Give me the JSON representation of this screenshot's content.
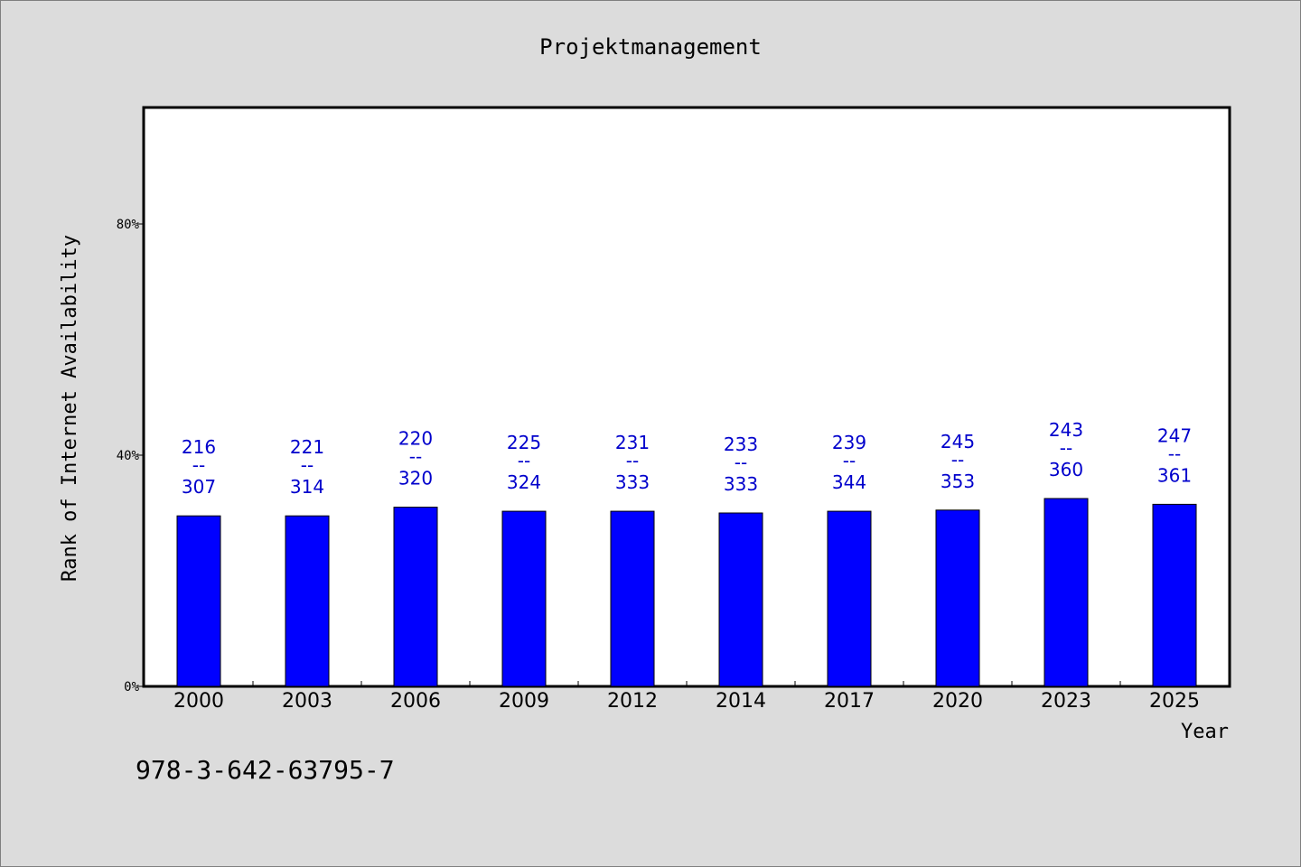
{
  "chart_data": {
    "type": "bar",
    "title": "Projektmanagement",
    "xlabel": "Year",
    "ylabel": "Rank of Internet Availability",
    "categories": [
      "2000",
      "2003",
      "2006",
      "2009",
      "2012",
      "2014",
      "2017",
      "2020",
      "2023",
      "2025"
    ],
    "values": [
      29.5,
      29.5,
      31.0,
      30.3,
      30.3,
      30.0,
      30.3,
      30.5,
      32.5,
      31.5
    ],
    "labels_top": [
      "216",
      "221",
      "220",
      "225",
      "231",
      "233",
      "239",
      "245",
      "243",
      "247"
    ],
    "labels_bottom": [
      "307",
      "314",
      "320",
      "324",
      "333",
      "333",
      "344",
      "353",
      "360",
      "361"
    ],
    "label_separator": "--",
    "yticks": [
      0,
      40,
      80
    ],
    "ytick_labels": [
      "0%",
      "40%",
      "80%"
    ],
    "ylim": [
      0,
      100
    ],
    "grid": false,
    "colors": {
      "bar": "#0000ff",
      "bar_edge": "#000000",
      "label": "#0000cc",
      "background": "#dcdcdc",
      "plot_background": "#ffffff"
    }
  },
  "footer": {
    "isbn": "978-3-642-63795-7"
  }
}
